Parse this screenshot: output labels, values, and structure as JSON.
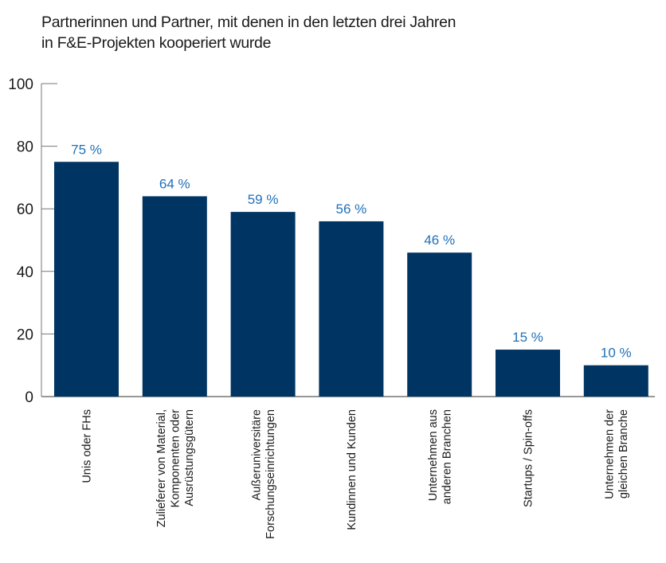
{
  "chart_data": {
    "type": "bar",
    "title": "Partnerinnen und Partner, mit denen in den letzten drei Jahren in F&E-Projekten kooperiert wurde",
    "title_lines": [
      "Partnerinnen und Partner, mit denen in den letzten drei Jahren",
      "in F&E-Projekten kooperiert wurde"
    ],
    "xlabel": "",
    "ylabel": "",
    "ylim": [
      0,
      100
    ],
    "yticks": [
      0,
      20,
      40,
      60,
      80,
      100
    ],
    "grid": false,
    "categories": [
      [
        "Unis oder FHs"
      ],
      [
        "Zulieferer von Material,",
        "Komponenten oder",
        "Ausrüstungsgütern"
      ],
      [
        "Außeruniversitäre",
        "Forschungseinrichtungen"
      ],
      [
        "Kundinnen und Kunden"
      ],
      [
        "Unternehmen aus",
        "anderen Branchen"
      ],
      [
        "Startups / Spin-offs"
      ],
      [
        "Unternehmen der",
        "gleichen Branche"
      ]
    ],
    "values": [
      75,
      64,
      59,
      56,
      46,
      15,
      10
    ],
    "value_labels": [
      "75 %",
      "64 %",
      "59 %",
      "56 %",
      "46 %",
      "15 %",
      "10 %"
    ],
    "colors": {
      "bar": "#003462",
      "value_label": "#1f70b8",
      "axis": "#777777"
    }
  }
}
